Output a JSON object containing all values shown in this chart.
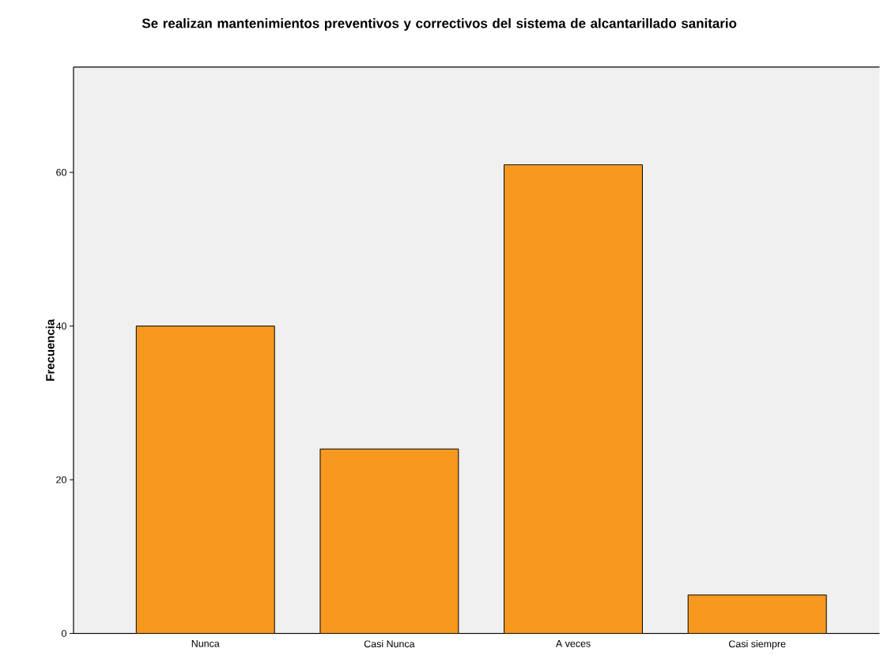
{
  "chart_data": {
    "type": "bar",
    "title": "Se realizan mantenimientos preventivos y correctivos del sistema de alcantarillado sanitario",
    "ylabel": "Frecuencia",
    "categories": [
      "Nunca",
      "Casi Nunca",
      "A veces",
      "Casi siempre"
    ],
    "values": [
      40,
      24,
      61,
      5
    ],
    "color": "#f7991f",
    "ylim": [
      0,
      73.7
    ],
    "yticks": [
      0,
      20,
      40,
      60
    ]
  }
}
